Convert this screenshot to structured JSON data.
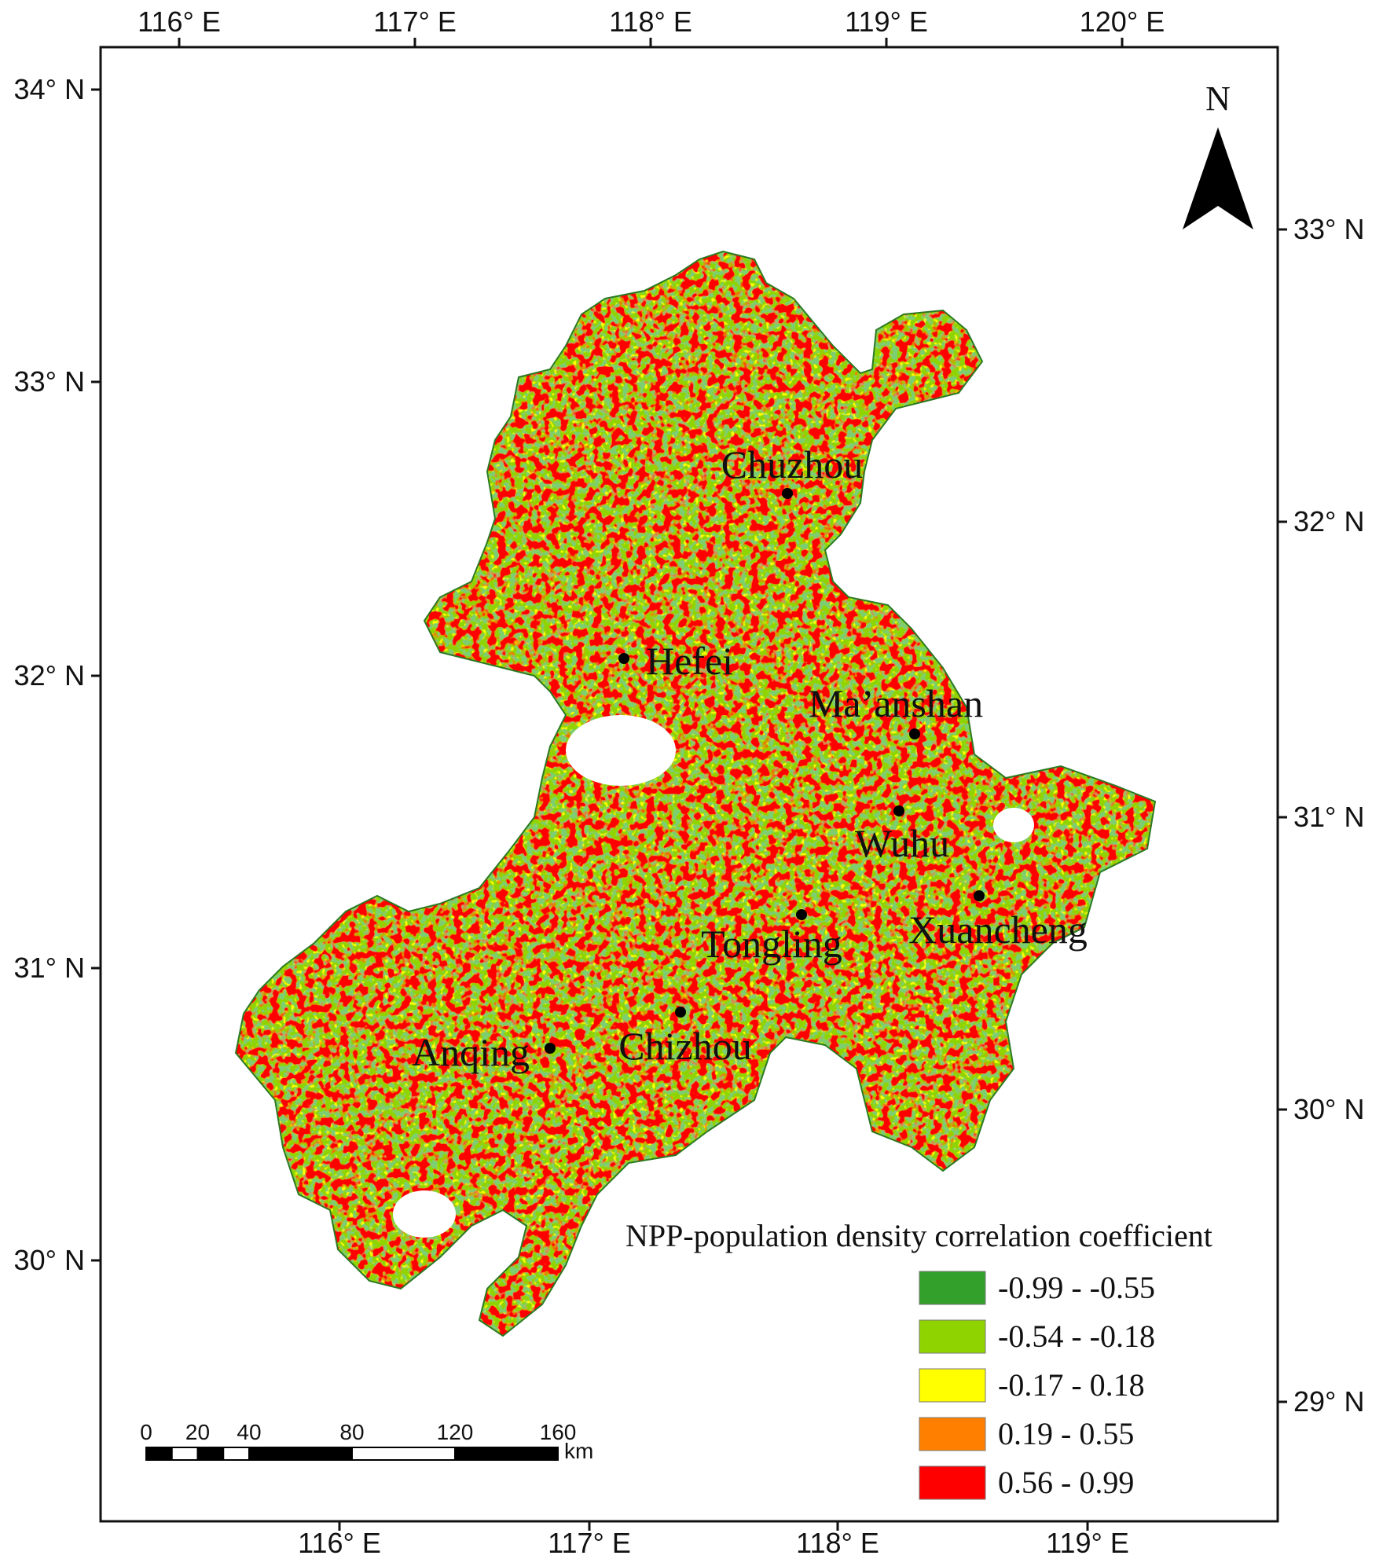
{
  "axes": {
    "top_labels": [
      "116° E",
      "117° E",
      "118° E",
      "119° E",
      "120° E"
    ],
    "bottom_labels": [
      "116° E",
      "117° E",
      "118° E",
      "119° E"
    ],
    "left_labels": [
      "34° N",
      "33° N",
      "32° N",
      "31° N",
      "30° N"
    ],
    "right_labels": [
      "33° N",
      "32° N",
      "31° N",
      "30° N",
      "29° N"
    ]
  },
  "north_arrow": {
    "label": "N"
  },
  "cities": [
    {
      "name": "Chuzhou"
    },
    {
      "name": "Hefei"
    },
    {
      "name": "Ma’anshan"
    },
    {
      "name": "Wuhu"
    },
    {
      "name": "Xuancheng"
    },
    {
      "name": "Tongling"
    },
    {
      "name": "Chizhou"
    },
    {
      "name": "Anqing"
    }
  ],
  "legend": {
    "title": "NPP-population density correlation coefficient",
    "classes": [
      {
        "label": "-0.99 - -0.55",
        "color": "#33a02c"
      },
      {
        "label": "-0.54 - -0.18",
        "color": "#8fd400"
      },
      {
        "label": "-0.17 - 0.18",
        "color": "#ffff00"
      },
      {
        "label": "0.19 - 0.55",
        "color": "#ff8000"
      },
      {
        "label": "0.56 - 0.99",
        "color": "#ff0000"
      }
    ]
  },
  "scale_bar": {
    "ticks": [
      "0",
      "20",
      "40",
      "80",
      "120",
      "160"
    ],
    "unit": "km"
  }
}
